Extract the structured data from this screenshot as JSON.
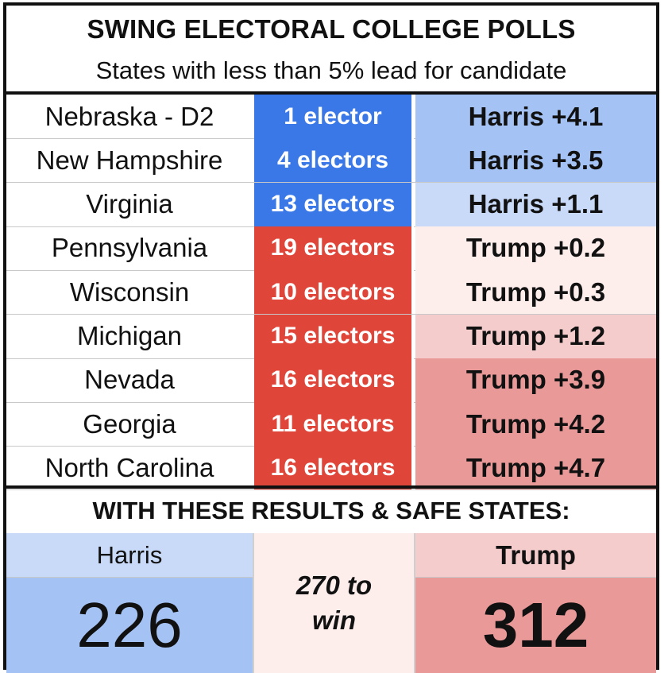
{
  "title": "SWING ELECTORAL COLLEGE POLLS",
  "subtitle": "States with less than 5% lead for candidate",
  "rows": [
    {
      "state": "Nebraska - D2",
      "electors": "1 elector",
      "lead": "Harris +4.1",
      "elector_color": "#3b78e7",
      "lead_color": "#a4c2f4"
    },
    {
      "state": "New Hampshire",
      "electors": "4 electors",
      "lead": "Harris +3.5",
      "elector_color": "#3b78e7",
      "lead_color": "#a4c2f4"
    },
    {
      "state": "Virginia",
      "electors": "13 electors",
      "lead": "Harris +1.1",
      "elector_color": "#3b78e7",
      "lead_color": "#c9daf8"
    },
    {
      "state": "Pennsylvania",
      "electors": "19 electors",
      "lead": "Trump +0.2",
      "elector_color": "#e0453a",
      "lead_color": "#fdeeec"
    },
    {
      "state": "Wisconsin",
      "electors": "10 electors",
      "lead": "Trump +0.3",
      "elector_color": "#e0453a",
      "lead_color": "#fdeeec"
    },
    {
      "state": "Michigan",
      "electors": "15 electors",
      "lead": "Trump +1.2",
      "elector_color": "#e0453a",
      "lead_color": "#f4cccc"
    },
    {
      "state": "Nevada",
      "electors": "16 electors",
      "lead": "Trump +3.9",
      "elector_color": "#e0453a",
      "lead_color": "#ea9999"
    },
    {
      "state": "Georgia",
      "electors": "11 electors",
      "lead": "Trump +4.2",
      "elector_color": "#e0453a",
      "lead_color": "#ea9999"
    },
    {
      "state": "North Carolina",
      "electors": "16 electors",
      "lead": "Trump +4.7",
      "elector_color": "#e0453a",
      "lead_color": "#ea9999"
    }
  ],
  "results": {
    "banner": "WITH THESE RESULTS & SAFE STATES:",
    "harris_label": "Harris",
    "harris_total": "226",
    "middle_line1": "270 to",
    "middle_line2": "win",
    "trump_label": "Trump",
    "trump_total": "312"
  },
  "colors": {
    "harris_label_bg": "#c9daf8",
    "harris_total_bg": "#a4c2f4",
    "middle_bg": "#fdeeec",
    "trump_label_bg": "#f4cccc",
    "trump_total_bg": "#ea9999"
  }
}
